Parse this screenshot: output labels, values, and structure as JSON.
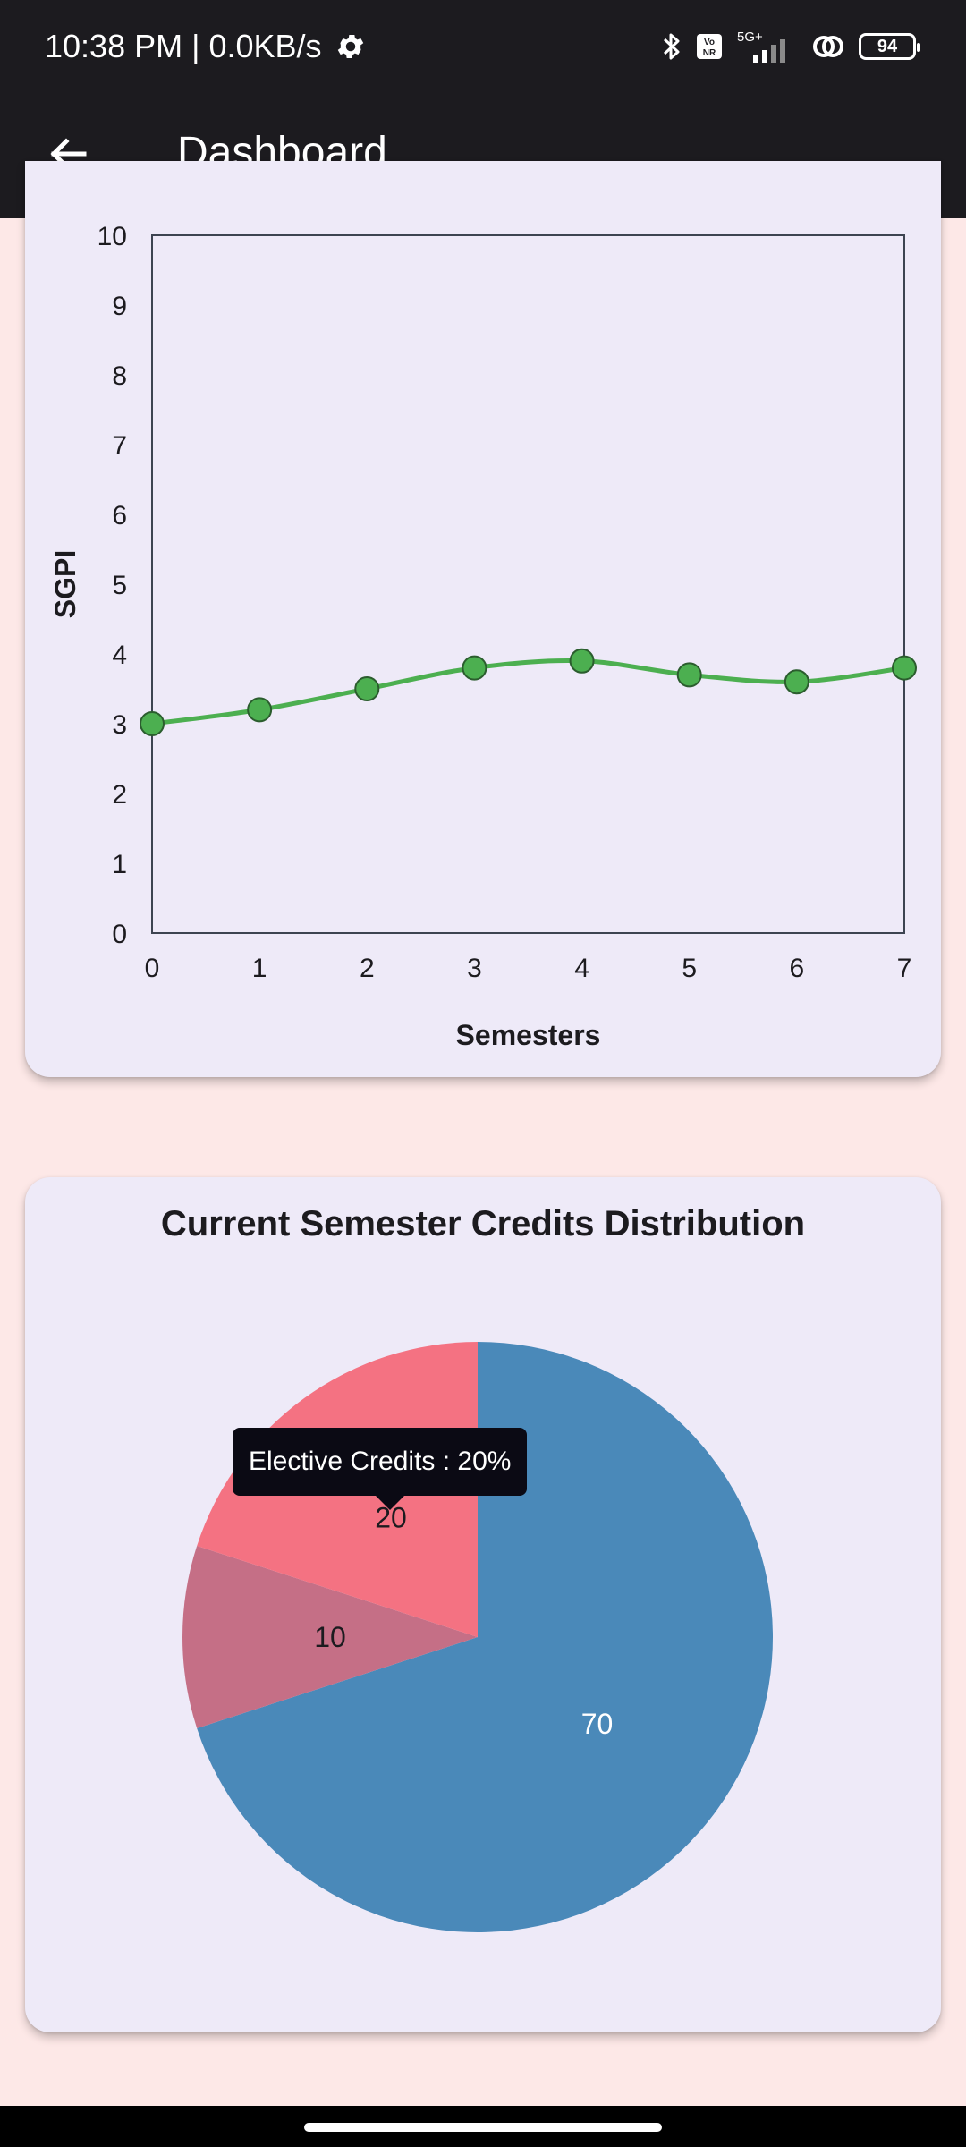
{
  "status_bar": {
    "time": "10:38 PM | 0.0KB/s",
    "network": "5G+",
    "battery": "94"
  },
  "app_bar": {
    "title": "Dashboard"
  },
  "line_chart": {
    "chart_data": {
      "type": "line",
      "x": [
        0,
        1,
        2,
        3,
        4,
        5,
        6,
        7
      ],
      "values": [
        3.0,
        3.2,
        3.5,
        3.8,
        3.9,
        3.7,
        3.6,
        3.8
      ],
      "xlabel": "Semesters",
      "ylabel": "SGPI",
      "xlim": [
        0,
        7
      ],
      "ylim": [
        0,
        10
      ],
      "y_ticks": [
        0,
        1,
        2,
        3,
        4,
        5,
        6,
        7,
        8,
        9,
        10
      ],
      "x_ticks": [
        0,
        1,
        2,
        3,
        4,
        5,
        6,
        7
      ],
      "line_color": "#4caf50",
      "grid": false
    }
  },
  "pie_chart": {
    "title": "Current Semester Credits Distribution",
    "tooltip": "Elective Credits : 20%",
    "chart_data": {
      "type": "pie",
      "slices": [
        {
          "value": 70,
          "label": "70",
          "color": "#4a89b9"
        },
        {
          "value": 10,
          "label": "10",
          "color": "#c56f86"
        },
        {
          "value": 20,
          "label": "20",
          "color": "#f47282"
        }
      ]
    }
  }
}
